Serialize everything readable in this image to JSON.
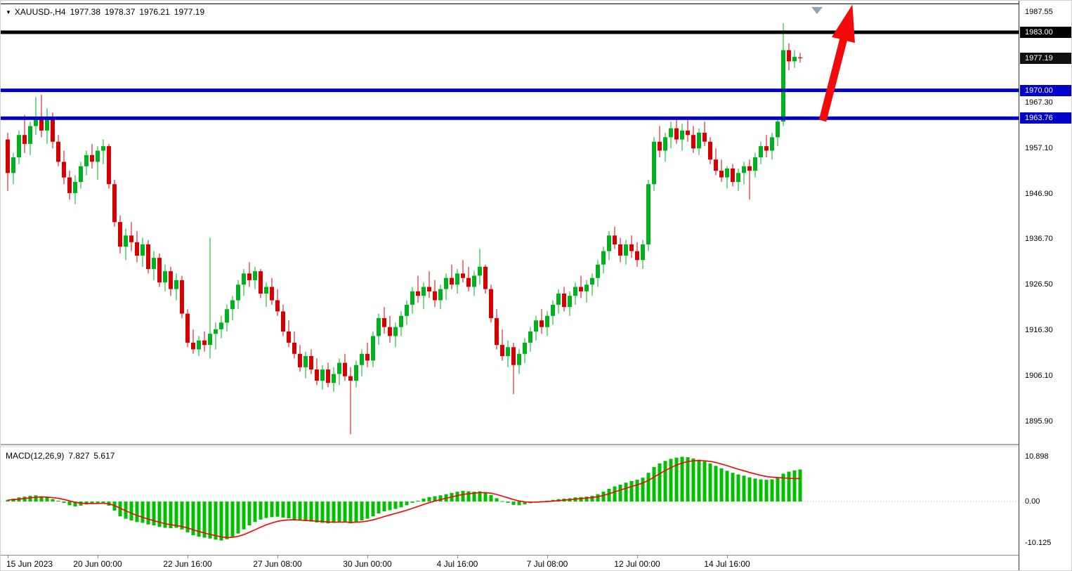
{
  "window": {
    "collapse_icon": "▼",
    "symbol_period": "XAUUSD-,H4",
    "open": "1977.38",
    "high": "1978.37",
    "low": "1976.21",
    "close": "1977.19"
  },
  "indicator": {
    "name": "MACD(12,26,9)",
    "macd_value": "7.827",
    "signal_value": "5.617",
    "axis_labels": [
      {
        "text": "10.898",
        "value": 10.898
      },
      {
        "text": "0.00",
        "value": 0
      },
      {
        "text": "-10.125",
        "value": -10.125
      }
    ]
  },
  "price_axis": {
    "labels": [
      {
        "text": "1987.55",
        "price": 1987.55,
        "style": "plain"
      },
      {
        "text": "1983.00",
        "price": 1983.0,
        "style": "black"
      },
      {
        "text": "1977.19",
        "price": 1977.19,
        "style": "current"
      },
      {
        "text": "1970.00",
        "price": 1970.0,
        "style": "blue"
      },
      {
        "text": "1967.30",
        "price": 1967.3,
        "style": "plain"
      },
      {
        "text": "1963.76",
        "price": 1963.76,
        "style": "blue"
      },
      {
        "text": "1957.10",
        "price": 1957.1,
        "style": "plain"
      },
      {
        "text": "1946.90",
        "price": 1946.9,
        "style": "plain"
      },
      {
        "text": "1936.70",
        "price": 1936.7,
        "style": "plain"
      },
      {
        "text": "1926.50",
        "price": 1926.5,
        "style": "plain"
      },
      {
        "text": "1916.30",
        "price": 1916.3,
        "style": "plain"
      },
      {
        "text": "1906.10",
        "price": 1906.1,
        "style": "plain"
      },
      {
        "text": "1895.90",
        "price": 1895.9,
        "style": "plain"
      }
    ]
  },
  "time_axis": {
    "labels": [
      {
        "text": "15 Jun 2023",
        "bar": 0
      },
      {
        "text": "20 Jun 00:00",
        "bar": 16
      },
      {
        "text": "22 Jun 16:00",
        "bar": 32
      },
      {
        "text": "27 Jun 08:00",
        "bar": 48
      },
      {
        "text": "30 Jun 00:00",
        "bar": 64
      },
      {
        "text": "4 Jul 16:00",
        "bar": 80
      },
      {
        "text": "7 Jul 08:00",
        "bar": 96
      },
      {
        "text": "12 Jul 00:00",
        "bar": 112
      },
      {
        "text": "14 Jul 16:00",
        "bar": 128
      }
    ]
  },
  "colors": {
    "bull_candle": "#00B01E",
    "bear_candle": "#D40000",
    "macd_histogram": "#00C000",
    "macd_signal": "#FF0000",
    "level_blue": "#0000C8",
    "level_black": "#000000",
    "current_badge": "#101010",
    "arrow_red": "#F30B0B",
    "triangle_marker": "#8FA6BA",
    "axis_text": "#000000"
  },
  "chart_data": {
    "type": "candlestick",
    "symbol": "XAUUSD-",
    "timeframe": "H4",
    "title": "XAUUSD- H4 with MACD(12,26,9)",
    "current_price": 1977.19,
    "price_range": [
      1890.85,
      1989.28
    ],
    "levels": [
      {
        "price": 1983.0,
        "color": "#000000",
        "width": 5
      },
      {
        "price": 1970.0,
        "color": "#0000C8",
        "width": 5
      },
      {
        "price": 1963.76,
        "color": "#0000C8",
        "width": 5
      }
    ],
    "annotations": {
      "arrow": {
        "type": "up-trend-arrow",
        "color": "#F30B0B",
        "from": {
          "bar": 145,
          "price": 1963.2
        },
        "to": {
          "bar": 150.3,
          "price": 1989.2
        }
      },
      "triangle_marker": {
        "bar": 144,
        "color": "#8FA6BA"
      }
    },
    "candles": [
      [
        1959.0,
        1960.5,
        1947.5,
        1951.5
      ],
      [
        1951.5,
        1956.0,
        1949.0,
        1955.0
      ],
      [
        1955.0,
        1961.0,
        1953.5,
        1960.0
      ],
      [
        1960.0,
        1964.5,
        1956.0,
        1958.0
      ],
      [
        1958.0,
        1963.0,
        1955.5,
        1962.0
      ],
      [
        1962.0,
        1968.5,
        1960.0,
        1964.0
      ],
      [
        1964.0,
        1969.0,
        1959.5,
        1961.0
      ],
      [
        1961.0,
        1966.0,
        1958.0,
        1963.5
      ],
      [
        1963.5,
        1965.0,
        1957.0,
        1958.5
      ],
      [
        1958.5,
        1960.0,
        1953.0,
        1954.0
      ],
      [
        1954.0,
        1956.5,
        1949.0,
        1950.5
      ],
      [
        1950.5,
        1952.0,
        1945.5,
        1947.0
      ],
      [
        1947.0,
        1951.0,
        1944.5,
        1949.5
      ],
      [
        1949.5,
        1954.0,
        1948.0,
        1953.0
      ],
      [
        1953.0,
        1956.5,
        1951.0,
        1955.5
      ],
      [
        1955.5,
        1958.0,
        1952.5,
        1954.0
      ],
      [
        1954.0,
        1957.5,
        1950.0,
        1956.5
      ],
      [
        1956.5,
        1959.0,
        1953.5,
        1957.5
      ],
      [
        1957.5,
        1958.0,
        1948.0,
        1949.0
      ],
      [
        1949.0,
        1950.0,
        1939.5,
        1940.5
      ],
      [
        1940.5,
        1942.0,
        1933.5,
        1935.0
      ],
      [
        1935.0,
        1939.0,
        1932.0,
        1937.5
      ],
      [
        1937.5,
        1940.5,
        1934.0,
        1936.0
      ],
      [
        1936.0,
        1938.5,
        1931.5,
        1933.0
      ],
      [
        1933.0,
        1937.0,
        1930.5,
        1935.5
      ],
      [
        1935.5,
        1936.5,
        1929.0,
        1930.0
      ],
      [
        1930.0,
        1934.0,
        1927.5,
        1932.5
      ],
      [
        1932.5,
        1933.5,
        1926.0,
        1927.0
      ],
      [
        1927.0,
        1931.0,
        1925.0,
        1929.5
      ],
      [
        1929.5,
        1930.5,
        1924.0,
        1925.5
      ],
      [
        1925.5,
        1929.0,
        1923.0,
        1927.5
      ],
      [
        1927.5,
        1928.5,
        1919.0,
        1920.0
      ],
      [
        1920.0,
        1921.0,
        1912.5,
        1913.5
      ],
      [
        1913.5,
        1916.5,
        1911.0,
        1912.0
      ],
      [
        1912.0,
        1915.0,
        1910.5,
        1914.0
      ],
      [
        1914.0,
        1916.0,
        1911.5,
        1913.0
      ],
      [
        1913.0,
        1937.0,
        1910.0,
        1915.5
      ],
      [
        1915.5,
        1918.0,
        1912.0,
        1916.5
      ],
      [
        1916.5,
        1919.5,
        1914.5,
        1918.0
      ],
      [
        1918.0,
        1922.0,
        1916.0,
        1921.0
      ],
      [
        1921.0,
        1924.0,
        1918.5,
        1923.0
      ],
      [
        1923.0,
        1927.5,
        1921.0,
        1926.5
      ],
      [
        1926.5,
        1930.0,
        1924.0,
        1929.0
      ],
      [
        1929.0,
        1931.5,
        1926.0,
        1927.5
      ],
      [
        1927.5,
        1930.5,
        1925.5,
        1929.5
      ],
      [
        1929.5,
        1930.0,
        1923.5,
        1924.5
      ],
      [
        1924.5,
        1927.0,
        1921.5,
        1926.0
      ],
      [
        1926.0,
        1928.0,
        1922.0,
        1923.0
      ],
      [
        1923.0,
        1925.5,
        1919.5,
        1920.5
      ],
      [
        1920.5,
        1922.0,
        1915.0,
        1916.0
      ],
      [
        1916.0,
        1918.5,
        1912.5,
        1913.5
      ],
      [
        1913.5,
        1916.0,
        1910.0,
        1911.0
      ],
      [
        1911.0,
        1913.0,
        1907.0,
        1908.0
      ],
      [
        1908.0,
        1911.5,
        1905.5,
        1910.5
      ],
      [
        1910.5,
        1912.0,
        1906.5,
        1907.5
      ],
      [
        1907.5,
        1910.0,
        1904.0,
        1905.0
      ],
      [
        1905.0,
        1908.5,
        1903.0,
        1907.5
      ],
      [
        1907.5,
        1909.0,
        1903.5,
        1904.5
      ],
      [
        1904.5,
        1908.0,
        1902.5,
        1906.5
      ],
      [
        1906.5,
        1910.0,
        1904.0,
        1909.0
      ],
      [
        1909.0,
        1911.0,
        1905.0,
        1906.0
      ],
      [
        1906.0,
        1908.0,
        1893.0,
        1905.0
      ],
      [
        1905.0,
        1909.5,
        1903.5,
        1908.5
      ],
      [
        1908.5,
        1912.0,
        1906.0,
        1911.0
      ],
      [
        1911.0,
        1913.5,
        1908.0,
        1909.5
      ],
      [
        1909.5,
        1916.0,
        1908.0,
        1915.0
      ],
      [
        1915.0,
        1920.0,
        1913.0,
        1919.0
      ],
      [
        1919.0,
        1921.5,
        1915.5,
        1917.0
      ],
      [
        1917.0,
        1919.5,
        1913.5,
        1915.0
      ],
      [
        1915.0,
        1918.0,
        1912.5,
        1917.0
      ],
      [
        1917.0,
        1920.5,
        1915.0,
        1919.5
      ],
      [
        1919.5,
        1923.0,
        1917.5,
        1922.0
      ],
      [
        1922.0,
        1926.0,
        1920.0,
        1925.0
      ],
      [
        1925.0,
        1928.5,
        1922.5,
        1924.0
      ],
      [
        1924.0,
        1927.0,
        1921.0,
        1926.0
      ],
      [
        1926.0,
        1929.5,
        1923.5,
        1925.0
      ],
      [
        1925.0,
        1927.5,
        1921.5,
        1923.0
      ],
      [
        1923.0,
        1926.5,
        1921.0,
        1925.5
      ],
      [
        1925.5,
        1929.0,
        1923.0,
        1928.0
      ],
      [
        1928.0,
        1931.0,
        1925.5,
        1926.5
      ],
      [
        1926.5,
        1930.0,
        1924.5,
        1929.0
      ],
      [
        1929.0,
        1932.0,
        1927.0,
        1928.0
      ],
      [
        1928.0,
        1930.5,
        1925.0,
        1926.0
      ],
      [
        1926.0,
        1929.5,
        1924.0,
        1928.5
      ],
      [
        1928.5,
        1934.5,
        1926.5,
        1930.5
      ],
      [
        1930.5,
        1931.0,
        1924.5,
        1925.5
      ],
      [
        1925.5,
        1926.5,
        1918.0,
        1919.0
      ],
      [
        1919.0,
        1921.0,
        1912.0,
        1913.0
      ],
      [
        1913.0,
        1916.5,
        1909.5,
        1910.5
      ],
      [
        1910.5,
        1914.0,
        1908.0,
        1912.5
      ],
      [
        1912.5,
        1913.5,
        1902.0,
        1908.5
      ],
      [
        1908.5,
        1912.0,
        1906.5,
        1911.0
      ],
      [
        1911.0,
        1914.5,
        1909.0,
        1913.5
      ],
      [
        1913.5,
        1917.0,
        1911.5,
        1916.0
      ],
      [
        1916.0,
        1919.5,
        1914.0,
        1918.5
      ],
      [
        1918.5,
        1921.0,
        1915.5,
        1917.0
      ],
      [
        1917.0,
        1920.5,
        1915.0,
        1919.5
      ],
      [
        1919.5,
        1923.0,
        1917.5,
        1922.0
      ],
      [
        1922.0,
        1925.5,
        1920.0,
        1924.5
      ],
      [
        1924.5,
        1926.0,
        1920.5,
        1921.5
      ],
      [
        1921.5,
        1925.0,
        1919.5,
        1924.0
      ],
      [
        1924.0,
        1927.0,
        1922.0,
        1926.0
      ],
      [
        1926.0,
        1928.5,
        1923.5,
        1925.0
      ],
      [
        1925.0,
        1927.5,
        1922.5,
        1926.5
      ],
      [
        1926.5,
        1929.0,
        1924.0,
        1928.0
      ],
      [
        1928.0,
        1932.0,
        1926.0,
        1931.0
      ],
      [
        1931.0,
        1935.0,
        1929.0,
        1934.0
      ],
      [
        1934.0,
        1938.5,
        1932.0,
        1937.5
      ],
      [
        1937.5,
        1939.5,
        1934.5,
        1935.5
      ],
      [
        1935.5,
        1937.0,
        1931.5,
        1933.0
      ],
      [
        1933.0,
        1936.5,
        1931.0,
        1935.5
      ],
      [
        1935.5,
        1937.5,
        1932.5,
        1934.0
      ],
      [
        1934.0,
        1936.0,
        1930.5,
        1932.0
      ],
      [
        1932.0,
        1936.5,
        1930.0,
        1935.5
      ],
      [
        1935.5,
        1950.0,
        1934.0,
        1949.0
      ],
      [
        1949.0,
        1959.5,
        1947.5,
        1958.5
      ],
      [
        1958.5,
        1962.0,
        1955.0,
        1956.5
      ],
      [
        1956.5,
        1960.5,
        1954.0,
        1959.5
      ],
      [
        1959.5,
        1963.0,
        1957.0,
        1961.5
      ],
      [
        1961.5,
        1963.5,
        1958.0,
        1959.0
      ],
      [
        1959.0,
        1962.5,
        1956.5,
        1961.0
      ],
      [
        1961.0,
        1963.7,
        1958.5,
        1960.0
      ],
      [
        1960.0,
        1962.0,
        1956.0,
        1957.0
      ],
      [
        1957.0,
        1961.5,
        1955.5,
        1960.5
      ],
      [
        1960.5,
        1963.0,
        1957.5,
        1958.5
      ],
      [
        1958.5,
        1959.5,
        1953.5,
        1954.5
      ],
      [
        1954.5,
        1957.0,
        1951.0,
        1952.0
      ],
      [
        1952.0,
        1954.5,
        1949.5,
        1950.5
      ],
      [
        1950.5,
        1953.0,
        1948.0,
        1952.5
      ],
      [
        1952.5,
        1953.5,
        1948.5,
        1949.5
      ],
      [
        1949.5,
        1952.5,
        1947.5,
        1951.5
      ],
      [
        1951.5,
        1954.0,
        1949.0,
        1953.0
      ],
      [
        1953.0,
        1954.5,
        1945.5,
        1952.0
      ],
      [
        1952.0,
        1956.0,
        1950.5,
        1955.0
      ],
      [
        1955.0,
        1958.5,
        1953.5,
        1957.5
      ],
      [
        1957.5,
        1960.0,
        1955.0,
        1956.5
      ],
      [
        1956.5,
        1960.5,
        1954.5,
        1959.5
      ],
      [
        1959.5,
        1963.5,
        1957.5,
        1963.0
      ],
      [
        1963.0,
        1985.0,
        1962.0,
        1979.0
      ],
      [
        1979.0,
        1980.5,
        1974.5,
        1976.5
      ],
      [
        1976.5,
        1979.0,
        1975.0,
        1977.5
      ],
      [
        1977.38,
        1978.37,
        1976.21,
        1977.19
      ]
    ],
    "macd": {
      "type": "bar+line",
      "range": [
        -13.0,
        13.2
      ],
      "last_macd": 7.827,
      "last_signal": 5.617,
      "histogram": [
        0.4,
        0.7,
        1.0,
        1.2,
        1.4,
        1.5,
        1.3,
        1.0,
        0.6,
        0.2,
        -0.3,
        -0.9,
        -1.2,
        -1.0,
        -0.7,
        -0.5,
        -0.4,
        -0.3,
        -1.0,
        -2.2,
        -3.6,
        -4.2,
        -4.6,
        -5.0,
        -5.2,
        -5.6,
        -5.8,
        -6.2,
        -6.4,
        -6.5,
        -6.4,
        -6.8,
        -7.5,
        -8.2,
        -8.6,
        -8.8,
        -9.0,
        -9.3,
        -9.5,
        -9.2,
        -8.6,
        -7.8,
        -6.8,
        -5.8,
        -5.0,
        -4.4,
        -4.0,
        -3.8,
        -3.7,
        -3.9,
        -4.1,
        -4.4,
        -4.7,
        -4.8,
        -4.9,
        -5.1,
        -5.2,
        -5.3,
        -5.2,
        -5.0,
        -4.9,
        -5.3,
        -5.0,
        -4.6,
        -4.2,
        -3.6,
        -2.9,
        -2.4,
        -2.1,
        -1.8,
        -1.4,
        -0.9,
        -0.3,
        0.2,
        0.7,
        1.1,
        1.3,
        1.5,
        1.8,
        2.1,
        2.4,
        2.6,
        2.5,
        2.4,
        2.5,
        2.2,
        1.6,
        0.8,
        0.1,
        -0.3,
        -0.8,
        -0.9,
        -0.7,
        -0.4,
        -0.1,
        0.1,
        0.2,
        0.4,
        0.6,
        0.7,
        0.8,
        1.0,
        1.1,
        1.2,
        1.4,
        1.8,
        2.4,
        3.1,
        3.7,
        4.1,
        4.6,
        5.0,
        5.3,
        5.8,
        7.0,
        8.4,
        9.3,
        9.9,
        10.4,
        10.7,
        10.9,
        10.8,
        10.5,
        10.2,
        9.8,
        9.3,
        8.7,
        8.1,
        7.5,
        7.0,
        6.6,
        6.3,
        5.9,
        5.6,
        5.4,
        5.3,
        5.4,
        5.8,
        6.8,
        7.3,
        7.6,
        7.827
      ],
      "signal": [
        0.35,
        0.44,
        0.58,
        0.74,
        0.9,
        1.05,
        1.11,
        1.08,
        0.96,
        0.77,
        0.5,
        0.15,
        -0.19,
        -0.39,
        -0.47,
        -0.48,
        -0.46,
        -0.42,
        -0.57,
        -0.98,
        -1.63,
        -2.27,
        -2.85,
        -3.39,
        -3.84,
        -4.28,
        -4.66,
        -5.05,
        -5.39,
        -5.67,
        -5.85,
        -6.09,
        -6.44,
        -6.88,
        -7.31,
        -7.68,
        -8.01,
        -8.33,
        -8.62,
        -8.77,
        -8.73,
        -8.5,
        -8.07,
        -7.5,
        -6.88,
        -6.26,
        -5.69,
        -5.22,
        -4.84,
        -4.6,
        -4.48,
        -4.46,
        -4.52,
        -4.59,
        -4.67,
        -4.78,
        -4.88,
        -4.99,
        -5.04,
        -5.03,
        -5.0,
        -5.07,
        -5.05,
        -4.94,
        -4.76,
        -4.47,
        -4.08,
        -3.66,
        -3.27,
        -2.9,
        -2.52,
        -2.12,
        -1.66,
        -1.2,
        -0.72,
        -0.27,
        0.12,
        0.47,
        0.8,
        1.12,
        1.44,
        1.73,
        1.92,
        2.04,
        2.16,
        2.17,
        2.03,
        1.72,
        1.31,
        0.91,
        0.48,
        0.14,
        -0.07,
        -0.15,
        -0.14,
        -0.08,
        -0.01,
        0.09,
        0.22,
        0.34,
        0.45,
        0.59,
        0.72,
        0.84,
        0.98,
        1.18,
        1.49,
        1.89,
        2.34,
        2.78,
        3.24,
        3.68,
        4.08,
        4.51,
        5.14,
        5.95,
        6.79,
        7.57,
        8.27,
        8.88,
        9.39,
        9.74,
        9.93,
        10.0,
        9.95,
        9.79,
        9.51,
        9.16,
        8.75,
        8.31,
        7.88,
        7.49,
        7.09,
        6.72,
        6.39,
        6.11,
        5.94,
        5.85,
        5.75,
        5.66,
        5.6,
        5.617
      ]
    }
  }
}
